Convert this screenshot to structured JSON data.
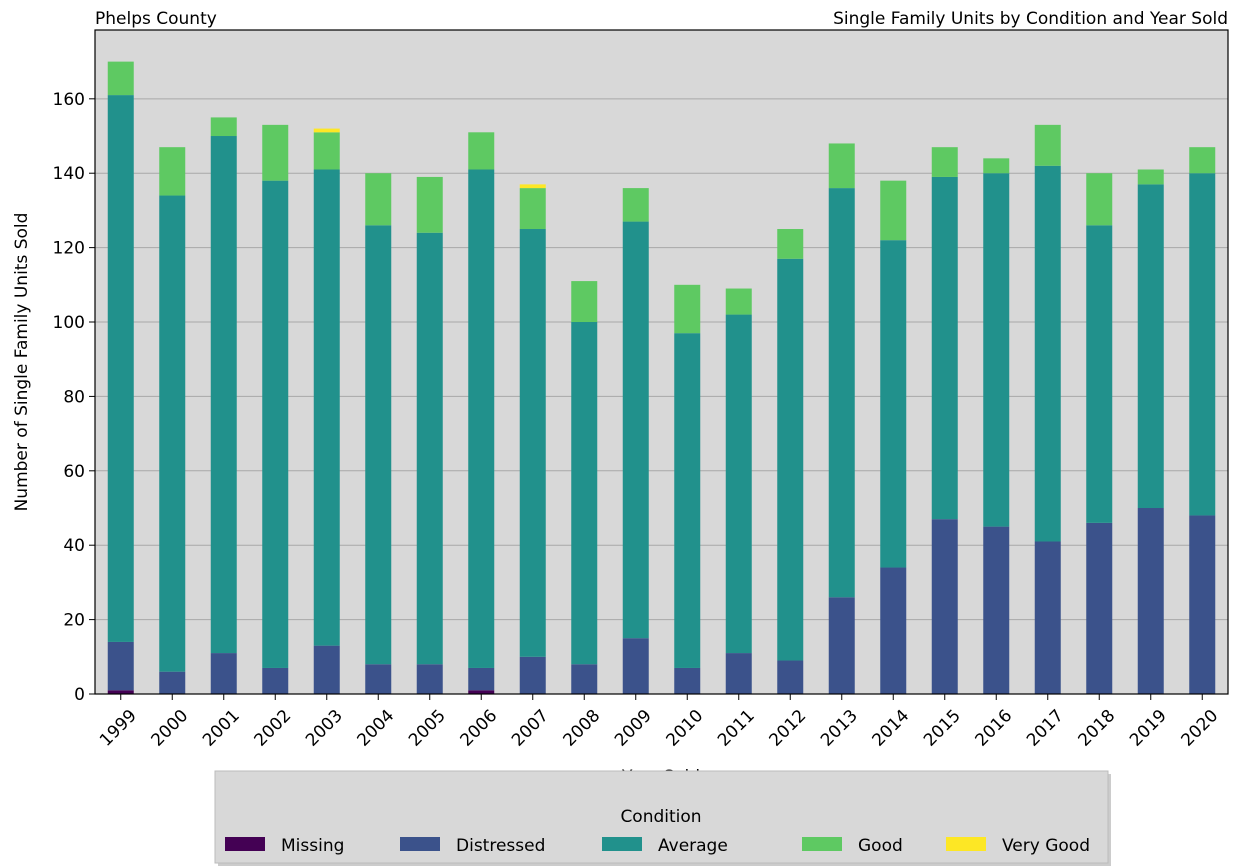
{
  "chart_data": {
    "type": "stacked_bar",
    "title": "Single Family Units by Condition and Year Sold",
    "subtitle": "Phelps County",
    "x_label": "Year Sold",
    "y_label": "Number of Single Family Units Sold",
    "legend_title": "Condition",
    "legend_position": "bottom",
    "grid": true,
    "categories": [
      "1999",
      "2000",
      "2001",
      "2002",
      "2003",
      "2004",
      "2005",
      "2006",
      "2007",
      "2008",
      "2009",
      "2010",
      "2011",
      "2012",
      "2013",
      "2014",
      "2015",
      "2016",
      "2017",
      "2018",
      "2019",
      "2020"
    ],
    "series": [
      {
        "name": "Missing",
        "color": "#440154",
        "values": [
          1,
          0,
          0,
          0,
          0,
          0,
          0,
          1,
          0,
          0,
          0,
          0,
          0,
          0,
          0,
          0,
          0,
          0,
          0,
          0,
          0,
          0
        ]
      },
      {
        "name": "Distressed",
        "color": "#3b528b",
        "values": [
          13,
          6,
          11,
          7,
          13,
          8,
          8,
          6,
          10,
          8,
          15,
          7,
          11,
          9,
          26,
          34,
          47,
          45,
          41,
          46,
          50,
          48
        ]
      },
      {
        "name": "Average",
        "color": "#21918c",
        "values": [
          147,
          128,
          139,
          131,
          128,
          118,
          116,
          134,
          115,
          92,
          112,
          90,
          91,
          108,
          110,
          88,
          92,
          95,
          101,
          80,
          87,
          92
        ]
      },
      {
        "name": "Good",
        "color": "#5ec962",
        "values": [
          9,
          13,
          5,
          15,
          10,
          14,
          15,
          10,
          11,
          11,
          9,
          13,
          7,
          8,
          12,
          16,
          8,
          4,
          11,
          14,
          4,
          7
        ]
      },
      {
        "name": "Very Good",
        "color": "#fde725",
        "values": [
          0,
          0,
          0,
          0,
          1,
          0,
          0,
          0,
          1,
          0,
          0,
          0,
          0,
          0,
          0,
          0,
          0,
          0,
          0,
          0,
          0,
          0
        ]
      }
    ],
    "ylim": [
      0,
      178.5
    ],
    "yticks": [
      0,
      20,
      40,
      60,
      80,
      100,
      120,
      140,
      160
    ]
  }
}
